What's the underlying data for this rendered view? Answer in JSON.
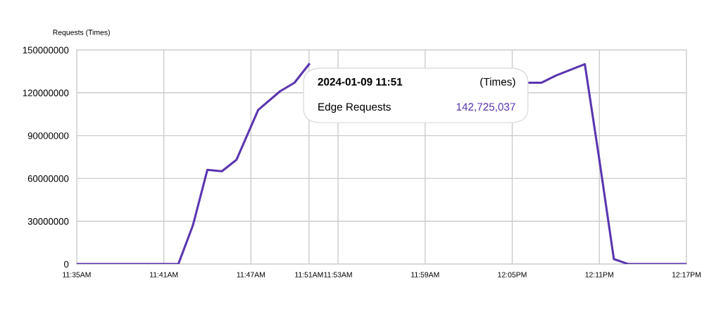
{
  "chart_data": {
    "type": "line",
    "ylabel": "Requests (Times)",
    "x": [
      11.58333,
      11.68333,
      11.7,
      11.71667,
      11.73333,
      11.75,
      11.76667,
      11.79167,
      11.81667,
      11.83333,
      11.85,
      11.86667,
      12.08333,
      12.1,
      12.11667,
      12.13333,
      12.16667,
      12.18333,
      12.2,
      12.21667,
      12.28333
    ],
    "series": [
      {
        "name": "Edge Requests",
        "color": "#5a35b0",
        "values": [
          0,
          0,
          0,
          27000000,
          66000000,
          65000000,
          73000000,
          108000000,
          121000000,
          127000000,
          140000000,
          null,
          null,
          127000000,
          127000000,
          132000000,
          140000000,
          73000000,
          3500000,
          0,
          0
        ]
      }
    ],
    "xlim": [
      11.58333,
      12.28333
    ],
    "xticks": [
      {
        "value": 11.58333,
        "label": "11:35AM"
      },
      {
        "value": 11.68333,
        "label": "11:41AM"
      },
      {
        "value": 11.78333,
        "label": "11:47AM"
      },
      {
        "value": 11.85,
        "label": "11:51AM"
      },
      {
        "value": 11.88333,
        "label": "11:53AM"
      },
      {
        "value": 11.98333,
        "label": "11:59AM"
      },
      {
        "value": 12.08333,
        "label": "12:05PM"
      },
      {
        "value": 12.18333,
        "label": "12:11PM"
      },
      {
        "value": 12.28333,
        "label": "12:17PM"
      }
    ],
    "ylim": [
      0,
      150000000
    ],
    "yticks": [
      0,
      30000000,
      60000000,
      90000000,
      120000000,
      150000000
    ],
    "grid": true,
    "legend": false,
    "marker": "none",
    "line_style": "solid",
    "annotations": [
      "2024-01-09 11:51",
      "(Times)",
      "142,725,037"
    ]
  }
}
